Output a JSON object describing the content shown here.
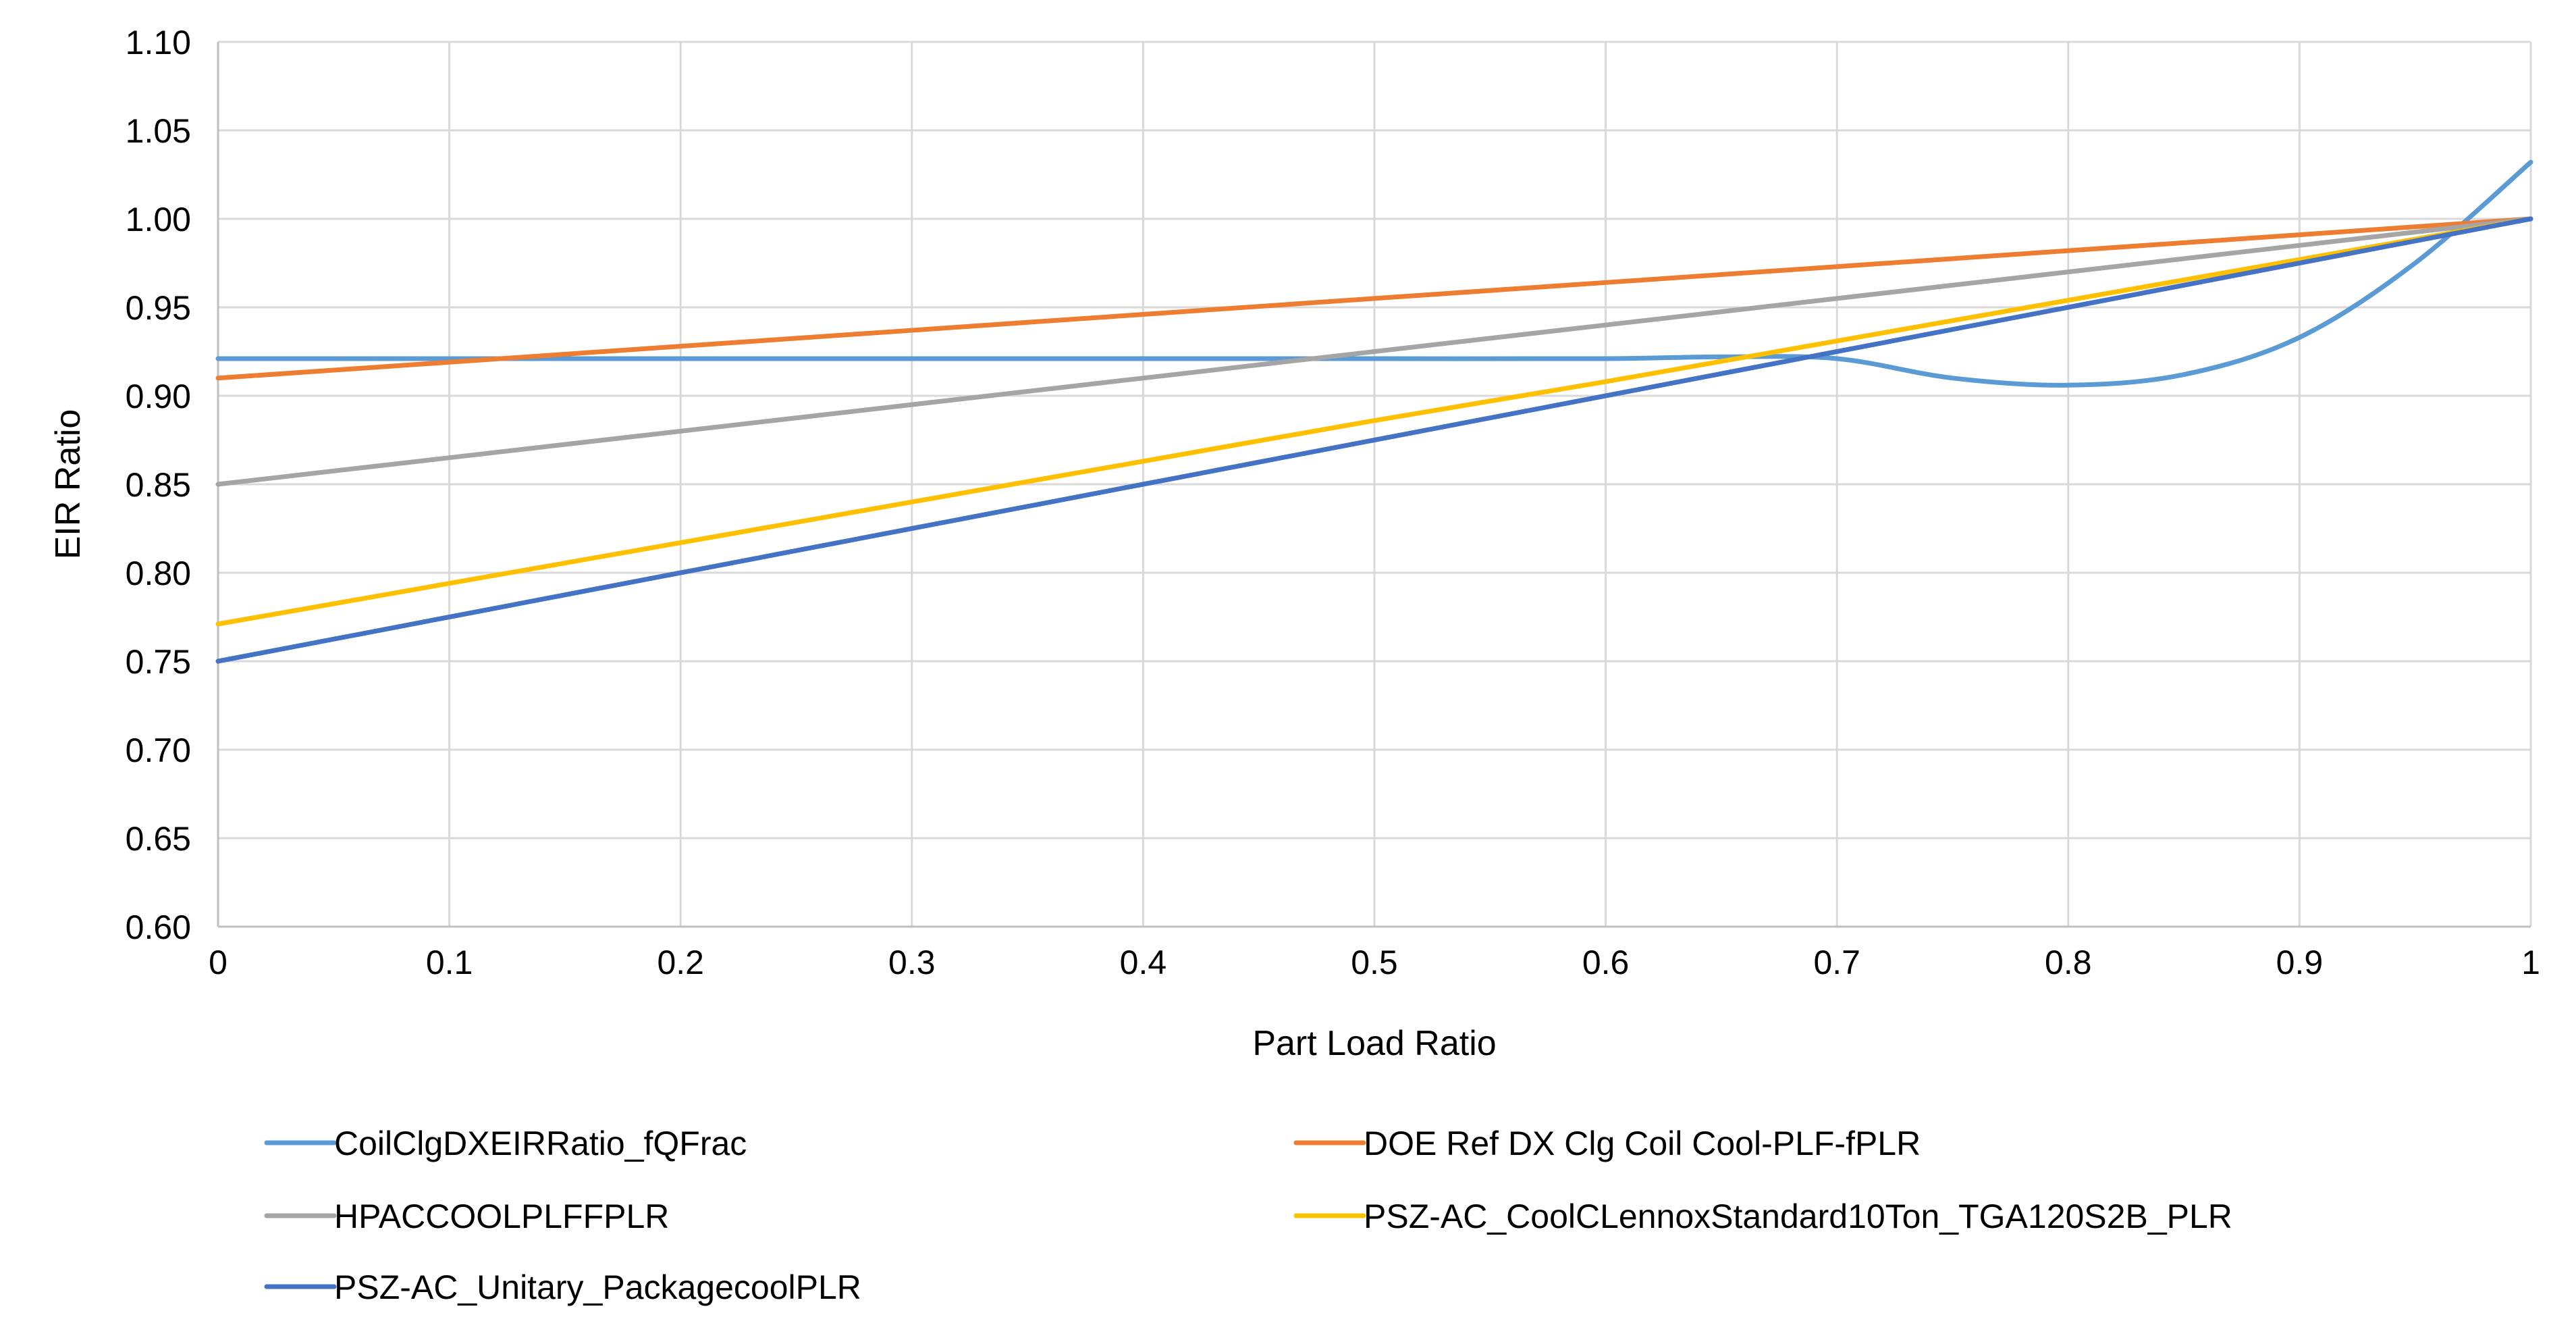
{
  "chart_data": {
    "type": "line",
    "title": "",
    "xlabel": "Part Load Ratio",
    "ylabel": "EIR Ratio",
    "xlim": [
      0,
      1
    ],
    "ylim": [
      0.6,
      1.1
    ],
    "x_ticks": [
      "0",
      "0.1",
      "0.2",
      "0.3",
      "0.4",
      "0.5",
      "0.6",
      "0.7",
      "0.8",
      "0.9",
      "1"
    ],
    "y_ticks": [
      "0.60",
      "0.65",
      "0.70",
      "0.75",
      "0.80",
      "0.85",
      "0.90",
      "0.95",
      "1.00",
      "1.05",
      "1.10"
    ],
    "grid": true,
    "legend_position": "bottom",
    "series": [
      {
        "name": "CoilClgDXEIRRatio_fQFrac",
        "color": "#5B9BD5",
        "x": [
          0,
          0.1,
          0.2,
          0.3,
          0.4,
          0.5,
          0.6,
          0.65,
          0.7,
          0.75,
          0.8,
          0.85,
          0.9,
          0.95,
          1.0
        ],
        "y": [
          0.921,
          0.921,
          0.921,
          0.921,
          0.921,
          0.921,
          0.921,
          0.922,
          0.921,
          0.91,
          0.906,
          0.912,
          0.933,
          0.975,
          1.032
        ]
      },
      {
        "name": "DOE Ref DX Clg Coil Cool-PLF-fPLR",
        "color": "#ED7D31",
        "x": [
          0,
          0.1,
          0.2,
          0.3,
          0.4,
          0.5,
          0.6,
          0.7,
          0.8,
          0.9,
          1.0
        ],
        "y": [
          0.91,
          0.919,
          0.928,
          0.937,
          0.946,
          0.955,
          0.964,
          0.973,
          0.982,
          0.991,
          1.0
        ]
      },
      {
        "name": "HPACCOOLPLFFPLR",
        "color": "#A5A5A5",
        "x": [
          0,
          0.1,
          0.2,
          0.3,
          0.4,
          0.5,
          0.6,
          0.7,
          0.8,
          0.9,
          1.0
        ],
        "y": [
          0.85,
          0.865,
          0.88,
          0.895,
          0.91,
          0.925,
          0.94,
          0.955,
          0.97,
          0.985,
          1.0
        ]
      },
      {
        "name": "PSZ-AC_CoolCLennoxStandard10Ton_TGA120S2B_PLR",
        "color": "#FFC000",
        "x": [
          0,
          0.1,
          0.2,
          0.3,
          0.4,
          0.5,
          0.6,
          0.7,
          0.8,
          0.9,
          1.0
        ],
        "y": [
          0.771,
          0.794,
          0.817,
          0.84,
          0.863,
          0.886,
          0.908,
          0.931,
          0.954,
          0.977,
          1.0
        ]
      },
      {
        "name": "PSZ-AC_Unitary_PackagecoolPLR",
        "color": "#4472C4",
        "x": [
          0,
          0.1,
          0.2,
          0.3,
          0.4,
          0.5,
          0.6,
          0.7,
          0.8,
          0.9,
          1.0
        ],
        "y": [
          0.75,
          0.775,
          0.8,
          0.825,
          0.85,
          0.875,
          0.9,
          0.925,
          0.95,
          0.975,
          1.0
        ]
      }
    ]
  }
}
